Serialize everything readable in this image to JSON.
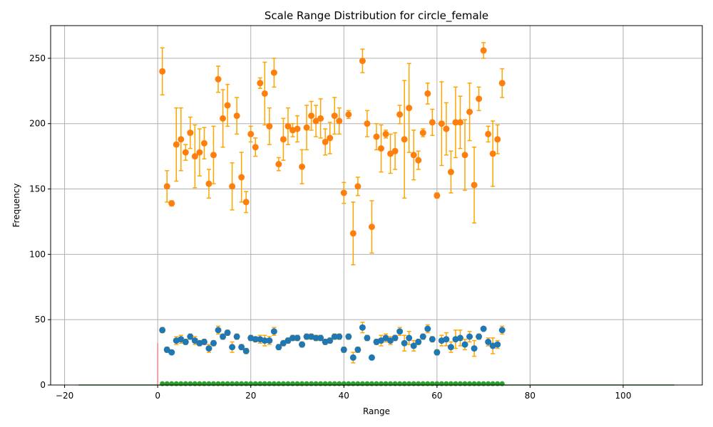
{
  "chart_data": {
    "type": "scatter",
    "title": "Scale Range Distribution for circle_female",
    "xlabel": "Range",
    "ylabel": "Frequency",
    "xlim": [
      -23,
      117
    ],
    "ylim": [
      0,
      275
    ],
    "xticks": [
      -20,
      0,
      20,
      40,
      60,
      80,
      100
    ],
    "yticks": [
      0,
      50,
      100,
      150,
      200,
      250
    ],
    "grid": true,
    "colors": {
      "upper_points": "#ff7f0e",
      "lower_points": "#1f77b4",
      "baseline_points": "#2ca02c",
      "baseline_line": "#2ca02c",
      "error_bars": "#ffa500",
      "zero_marker": "#e8a0a0"
    },
    "x": [
      1,
      2,
      3,
      4,
      5,
      6,
      7,
      8,
      9,
      10,
      11,
      12,
      13,
      14,
      15,
      16,
      17,
      18,
      19,
      20,
      21,
      22,
      23,
      24,
      25,
      26,
      27,
      28,
      29,
      30,
      31,
      32,
      33,
      34,
      35,
      36,
      37,
      38,
      39,
      40,
      41,
      42,
      43,
      44,
      45,
      46,
      47,
      48,
      49,
      50,
      51,
      52,
      53,
      54,
      55,
      56,
      57,
      58,
      59,
      60,
      61,
      62,
      63,
      64,
      65,
      66,
      67,
      68,
      69,
      70,
      71,
      72,
      73,
      74
    ],
    "series": [
      {
        "values": [
          240,
          152,
          139,
          184,
          188,
          178,
          193,
          175,
          178,
          185,
          154,
          176,
          234,
          204,
          214,
          152,
          206,
          159,
          140,
          192,
          182,
          231,
          223,
          198,
          239,
          169,
          188,
          198,
          195,
          196,
          167,
          197,
          206,
          202,
          204,
          186,
          189,
          206,
          202,
          147,
          207,
          116,
          152,
          248,
          200,
          121,
          190,
          181,
          192,
          177,
          179,
          207,
          188,
          212,
          176,
          172,
          193,
          223,
          201,
          145,
          200,
          196,
          163,
          201,
          201,
          176,
          209,
          153,
          219,
          256,
          192,
          177,
          188,
          231
        ],
        "errors": [
          18,
          12,
          2,
          28,
          24,
          6,
          12,
          24,
          18,
          12,
          11,
          22,
          10,
          22,
          16,
          18,
          14,
          19,
          8,
          6,
          7,
          4,
          24,
          14,
          11,
          5,
          16,
          14,
          5,
          10,
          13,
          17,
          11,
          12,
          15,
          10,
          12,
          14,
          10,
          8,
          3,
          24,
          7,
          9,
          10,
          20,
          10,
          18,
          3,
          15,
          14,
          7,
          45,
          34,
          19,
          7,
          3,
          8,
          10,
          2,
          32,
          20,
          16,
          27,
          20,
          27,
          22,
          29,
          9,
          6,
          6,
          25,
          11,
          11
        ]
      },
      {
        "values": [
          42,
          27,
          25,
          34,
          35,
          33,
          37,
          34,
          32,
          33,
          28,
          32,
          42,
          37,
          40,
          29,
          37,
          29,
          26,
          36,
          35,
          35,
          34,
          34,
          41,
          29,
          32,
          34,
          36,
          36,
          31,
          37,
          37,
          36,
          36,
          33,
          34,
          37,
          37,
          27,
          37,
          21,
          27,
          44,
          36,
          21,
          33,
          34,
          36,
          34,
          36,
          41,
          32,
          36,
          30,
          33,
          37,
          43,
          35,
          25,
          34,
          35,
          29,
          35,
          36,
          31,
          37,
          28,
          37,
          43,
          33,
          30,
          31,
          42
        ],
        "errors": [
          2,
          2,
          1,
          3,
          3,
          2,
          2,
          3,
          2,
          2,
          3,
          2,
          3,
          2,
          2,
          4,
          2,
          2,
          2,
          2,
          2,
          3,
          4,
          3,
          3,
          2,
          2,
          2,
          2,
          2,
          2,
          2,
          2,
          2,
          2,
          2,
          2,
          2,
          2,
          2,
          2,
          4,
          2,
          4,
          2,
          1,
          2,
          4,
          3,
          3,
          2,
          3,
          6,
          5,
          4,
          2,
          2,
          3,
          2,
          2,
          4,
          5,
          4,
          7,
          6,
          4,
          4,
          6,
          2,
          1,
          3,
          6,
          3,
          3
        ]
      },
      {
        "values": [
          1,
          1,
          1,
          1,
          1,
          1,
          1,
          1,
          1,
          1,
          1,
          1,
          1,
          1,
          1,
          1,
          1,
          1,
          1,
          1,
          1,
          1,
          1,
          1,
          1,
          1,
          1,
          1,
          1,
          1,
          1,
          1,
          1,
          1,
          1,
          1,
          1,
          1,
          1,
          1,
          1,
          1,
          1,
          1,
          1,
          1,
          1,
          1,
          1,
          1,
          1,
          1,
          1,
          1,
          1,
          1,
          1,
          1,
          1,
          1,
          1,
          1,
          1,
          1,
          1,
          1,
          1,
          1,
          1,
          1,
          1,
          1,
          1,
          1
        ]
      }
    ],
    "baseline": {
      "x": [
        -17,
        111
      ],
      "y": 0
    },
    "zero_marker": {
      "x": 0,
      "y": [
        0,
        32
      ]
    }
  }
}
